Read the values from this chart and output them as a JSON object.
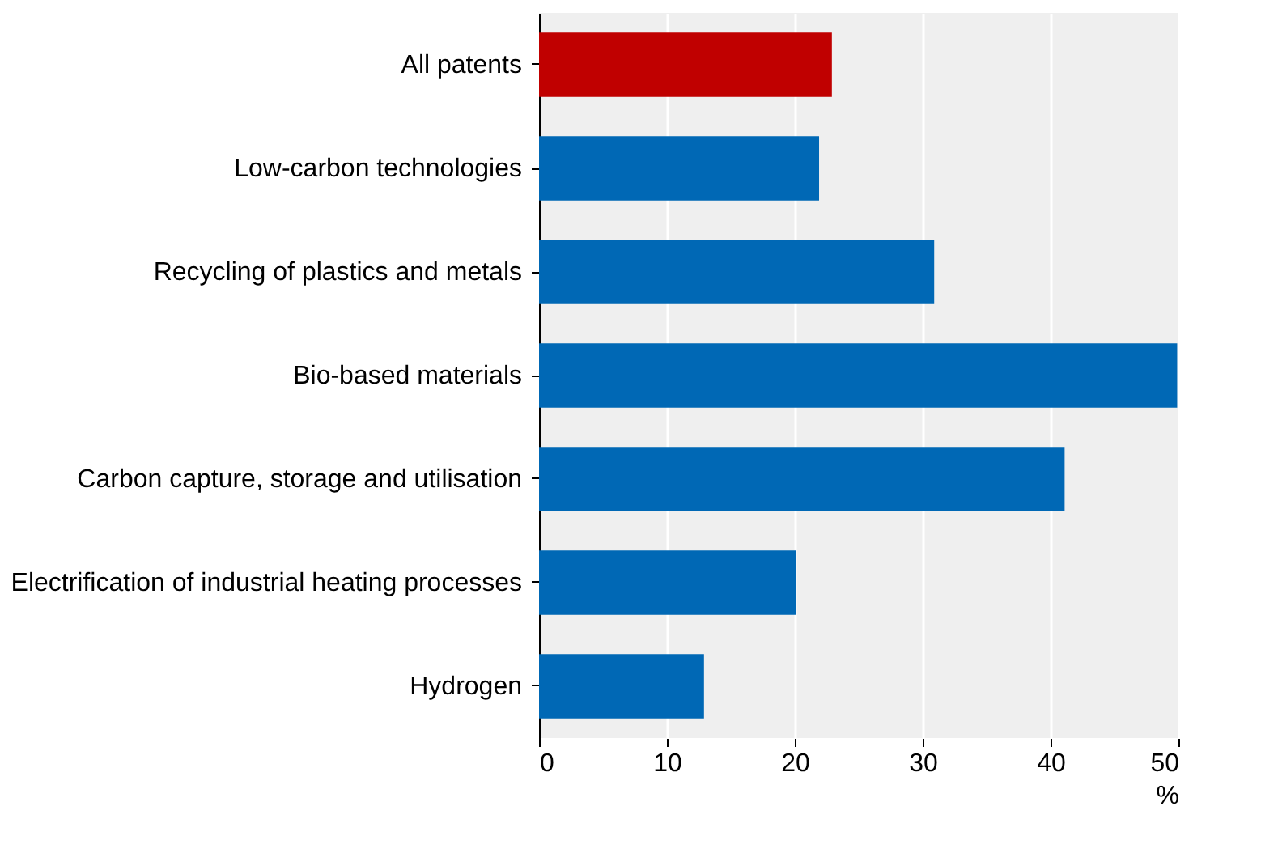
{
  "chart_data": {
    "type": "bar",
    "orientation": "horizontal",
    "categories": [
      "All patents",
      "Low-carbon technologies",
      "Recycling of plastics and metals",
      "Bio-based materials",
      "Carbon capture, storage and utilisation",
      "Electrification of industrial heating processes",
      "Hydrogen"
    ],
    "values": [
      22.9,
      21.9,
      30.9,
      49.9,
      41.1,
      20.1,
      12.9
    ],
    "colors": [
      "#c00000",
      "#0068b5",
      "#0068b5",
      "#0068b5",
      "#0068b5",
      "#0068b5",
      "#0068b5"
    ],
    "xlabel": "%",
    "xlim": [
      0,
      50
    ],
    "xticks": [
      0,
      10,
      20,
      30,
      40,
      50
    ],
    "grid": "x",
    "legend": false
  }
}
